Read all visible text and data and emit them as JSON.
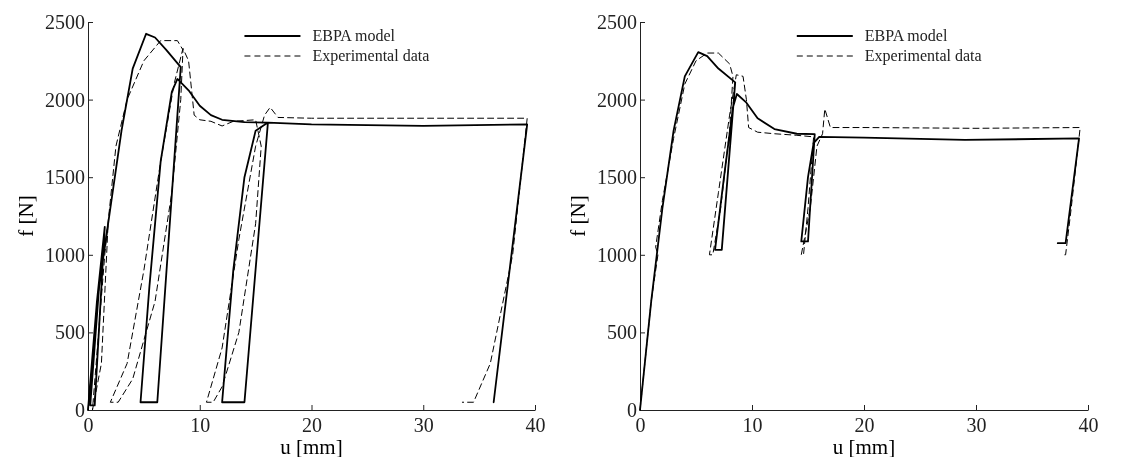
{
  "chart_data": [
    {
      "type": "line",
      "xlabel": "u [mm]",
      "ylabel": "f [N]",
      "xlim": [
        0,
        40
      ],
      "xticks": [
        0,
        10,
        20,
        30,
        40
      ],
      "ylim": [
        0,
        2500
      ],
      "yticks": [
        0,
        500,
        1000,
        1500,
        2000,
        2500
      ],
      "grid": false,
      "legend": "top right",
      "series": [
        {
          "name": "EBPA model",
          "color": "#000000",
          "line_style": "solid",
          "x": [
            0,
            0.8,
            1.5,
            0.6,
            0.2,
            1.0,
            2,
            3,
            4,
            5.2,
            6,
            7,
            8.3,
            6.2,
            4.7,
            5.5,
            6.5,
            7.5,
            8.0,
            9,
            10,
            11,
            12,
            14,
            16.1,
            14.0,
            12.0,
            13,
            14,
            15,
            16.1,
            20,
            30,
            39.3,
            36.3
          ],
          "values": [
            0,
            700,
            1180,
            30,
            30,
            800,
            1300,
            1800,
            2200,
            2424,
            2400,
            2320,
            2209,
            50,
            50,
            800,
            1600,
            2050,
            2133,
            2060,
            1960,
            1900,
            1870,
            1855,
            1852,
            50,
            50,
            900,
            1500,
            1800,
            1852,
            1840,
            1831,
            1840,
            50
          ]
        },
        {
          "name": "Experimental data",
          "color": "#000000",
          "line_style": "dashed",
          "x": [
            0,
            1,
            1.8,
            1.2,
            0.4,
            1.5,
            2.5,
            3.5,
            5,
            6.5,
            8,
            8.5,
            8.3,
            7.5,
            6,
            4,
            2.7,
            2,
            3.5,
            5,
            6.5,
            7.7,
            8.5,
            9,
            9.5,
            10,
            11,
            12,
            13,
            15,
            15.5,
            15,
            13.5,
            12,
            11.2,
            10.6,
            12,
            13.5,
            15,
            15.8,
            16.3,
            17,
            20,
            30,
            39.3,
            38,
            36,
            34.5,
            33.5
          ],
          "values": [
            0,
            800,
            1200,
            300,
            0,
            1000,
            1700,
            2000,
            2250,
            2380,
            2380,
            2320,
            2000,
            1400,
            700,
            200,
            50,
            50,
            300,
            900,
            1600,
            2100,
            2330,
            2250,
            1900,
            1870,
            1860,
            1830,
            1860,
            1870,
            1700,
            1200,
            500,
            150,
            50,
            50,
            400,
            1100,
            1700,
            1900,
            1950,
            1885,
            1880,
            1880,
            1880,
            1000,
            300,
            50,
            50
          ]
        }
      ]
    },
    {
      "type": "line",
      "xlabel": "u [mm]",
      "ylabel": "f [N]",
      "xlim": [
        0,
        40
      ],
      "xticks": [
        0,
        10,
        20,
        30,
        40
      ],
      "ylim": [
        0,
        2500
      ],
      "yticks": [
        0,
        500,
        1000,
        1500,
        2000,
        2500
      ],
      "grid": false,
      "legend": "top right",
      "series": [
        {
          "name": "EBPA model",
          "color": "#000000",
          "line_style": "solid",
          "x": [
            0,
            1,
            2,
            3,
            4,
            5.2,
            6,
            7,
            8.5,
            7.3,
            6.7,
            7.5,
            8.3,
            8.65,
            9.5,
            10.5,
            12,
            14,
            15.6,
            15.0,
            14.4,
            15,
            15.5,
            16,
            20,
            29,
            39.2,
            38.0,
            37.3
          ],
          "values": [
            0,
            700,
            1300,
            1800,
            2150,
            2306,
            2280,
            2200,
            2111,
            1032,
            1032,
            1500,
            1950,
            2036,
            1980,
            1880,
            1810,
            1780,
            1777,
            1086,
            1086,
            1500,
            1720,
            1760,
            1755,
            1740,
            1750,
            1075,
            1075
          ]
        },
        {
          "name": "Experimental data",
          "color": "#000000",
          "line_style": "dashed",
          "x": [
            0,
            1,
            1.6,
            1.4,
            2,
            3,
            4,
            5,
            6,
            7,
            8,
            8.3,
            8,
            7.2,
            6.5,
            6.2,
            7,
            8,
            8.6,
            9.2,
            9.5,
            9.7,
            10.5,
            12,
            14,
            15.5,
            15,
            14.6,
            14.4,
            15.2,
            15.8,
            16.3,
            16.5,
            17,
            20,
            30,
            39.3,
            38.5,
            38,
            37.8
          ],
          "values": [
            0,
            700,
            1000,
            1050,
            1350,
            1750,
            2100,
            2250,
            2300,
            2300,
            2230,
            2150,
            1800,
            1300,
            1000,
            1000,
            1400,
            1900,
            2160,
            2150,
            2000,
            1820,
            1790,
            1780,
            1770,
            1760,
            1300,
            1000,
            1000,
            1300,
            1700,
            1780,
            1940,
            1820,
            1820,
            1815,
            1820,
            1300,
            1000,
            1000
          ]
        }
      ]
    }
  ]
}
